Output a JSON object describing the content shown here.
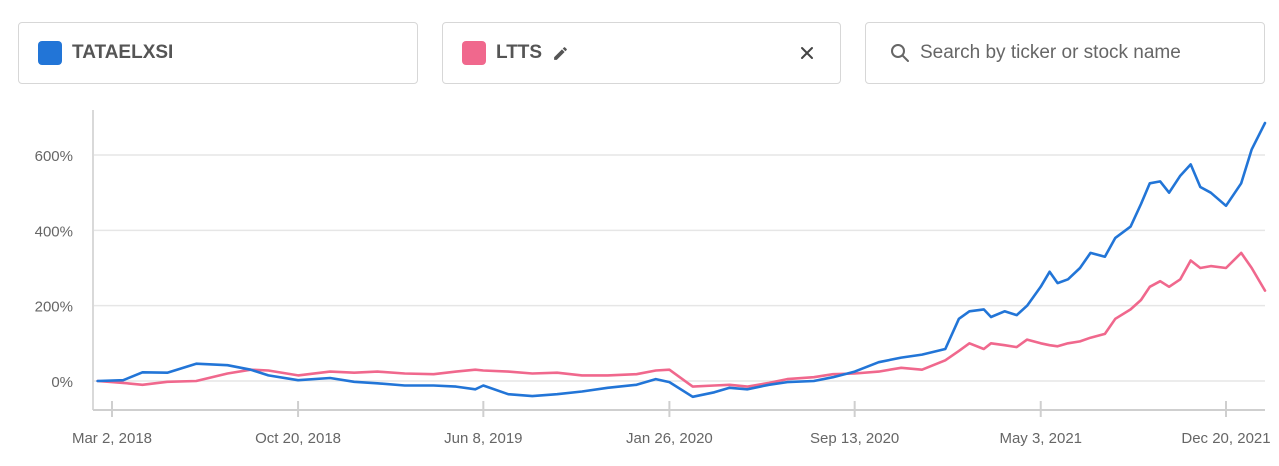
{
  "selectors": {
    "a": {
      "ticker": "TATAELXSI",
      "color": "#2275d7"
    },
    "b": {
      "ticker": "LTTS",
      "color": "#f0688d"
    },
    "search": {
      "placeholder": "Search by ticker or stock name"
    }
  },
  "chart_data": {
    "type": "line",
    "title": "",
    "xlabel": "",
    "ylabel": "",
    "grid": true,
    "y_ticks": [
      "0%",
      "200%",
      "400%",
      "600%"
    ],
    "y_tick_values": [
      0,
      200,
      400,
      600
    ],
    "x_ticks": [
      "Mar 2, 2018",
      "Oct 20, 2018",
      "Jun 8, 2019",
      "Jan 26, 2020",
      "Sep 13, 2020",
      "May 3, 2021",
      "Dec 20, 2021"
    ],
    "x_tick_values": [
      "2018-03-02",
      "2018-10-20",
      "2019-06-08",
      "2020-01-26",
      "2020-09-13",
      "2021-05-03",
      "2021-12-20"
    ],
    "ylim": [
      -75,
      725
    ],
    "series": [
      {
        "name": "TATAELXSI",
        "color": "#2275d7",
        "points": [
          [
            "2018-02-12",
            0
          ],
          [
            "2018-03-16",
            2
          ],
          [
            "2018-04-09",
            23
          ],
          [
            "2018-05-10",
            22
          ],
          [
            "2018-06-15",
            46
          ],
          [
            "2018-07-24",
            42
          ],
          [
            "2018-08-22",
            30
          ],
          [
            "2018-09-13",
            15
          ],
          [
            "2018-10-20",
            2
          ],
          [
            "2018-11-29",
            8
          ],
          [
            "2018-12-29",
            -2
          ],
          [
            "2019-01-27",
            -6
          ],
          [
            "2019-03-02",
            -12
          ],
          [
            "2019-04-07",
            -12
          ],
          [
            "2019-05-05",
            -15
          ],
          [
            "2019-05-29",
            -22
          ],
          [
            "2019-06-08",
            -12
          ],
          [
            "2019-07-09",
            -35
          ],
          [
            "2019-08-08",
            -40
          ],
          [
            "2019-09-08",
            -35
          ],
          [
            "2019-10-09",
            -28
          ],
          [
            "2019-11-10",
            -18
          ],
          [
            "2019-12-16",
            -10
          ],
          [
            "2020-01-09",
            5
          ],
          [
            "2020-01-26",
            -3
          ],
          [
            "2020-02-24",
            -42
          ],
          [
            "2020-03-22",
            -30
          ],
          [
            "2020-04-10",
            -18
          ],
          [
            "2020-05-02",
            -22
          ],
          [
            "2020-05-29",
            -10
          ],
          [
            "2020-06-21",
            -3
          ],
          [
            "2020-07-24",
            0
          ],
          [
            "2020-08-17",
            10
          ],
          [
            "2020-09-13",
            25
          ],
          [
            "2020-10-13",
            50
          ],
          [
            "2020-11-10",
            62
          ],
          [
            "2020-12-06",
            70
          ],
          [
            "2021-01-04",
            85
          ],
          [
            "2021-01-21",
            165
          ],
          [
            "2021-02-03",
            185
          ],
          [
            "2021-02-21",
            190
          ],
          [
            "2021-03-02",
            170
          ],
          [
            "2021-03-19",
            185
          ],
          [
            "2021-04-03",
            175
          ],
          [
            "2021-04-16",
            200
          ],
          [
            "2021-05-03",
            250
          ],
          [
            "2021-05-14",
            290
          ],
          [
            "2021-05-24",
            260
          ],
          [
            "2021-06-06",
            270
          ],
          [
            "2021-06-21",
            300
          ],
          [
            "2021-07-04",
            340
          ],
          [
            "2021-07-22",
            330
          ],
          [
            "2021-08-04",
            380
          ],
          [
            "2021-08-23",
            410
          ],
          [
            "2021-09-05",
            470
          ],
          [
            "2021-09-16",
            525
          ],
          [
            "2021-09-29",
            530
          ],
          [
            "2021-10-10",
            500
          ],
          [
            "2021-10-24",
            545
          ],
          [
            "2021-11-06",
            575
          ],
          [
            "2021-11-18",
            515
          ],
          [
            "2021-12-01",
            500
          ],
          [
            "2021-12-20",
            465
          ],
          [
            "2022-01-08",
            525
          ],
          [
            "2022-01-21",
            615
          ],
          [
            "2022-02-09",
            685
          ]
        ]
      },
      {
        "name": "LTTS",
        "color": "#f0688d",
        "points": [
          [
            "2018-02-12",
            0
          ],
          [
            "2018-03-16",
            -5
          ],
          [
            "2018-04-09",
            -10
          ],
          [
            "2018-05-10",
            -2
          ],
          [
            "2018-06-15",
            0
          ],
          [
            "2018-07-24",
            20
          ],
          [
            "2018-08-22",
            30
          ],
          [
            "2018-09-13",
            28
          ],
          [
            "2018-10-20",
            15
          ],
          [
            "2018-11-29",
            25
          ],
          [
            "2018-12-29",
            22
          ],
          [
            "2019-01-27",
            25
          ],
          [
            "2019-03-02",
            20
          ],
          [
            "2019-04-07",
            18
          ],
          [
            "2019-05-05",
            25
          ],
          [
            "2019-05-29",
            30
          ],
          [
            "2019-06-08",
            28
          ],
          [
            "2019-07-09",
            25
          ],
          [
            "2019-08-08",
            20
          ],
          [
            "2019-09-08",
            22
          ],
          [
            "2019-10-09",
            15
          ],
          [
            "2019-11-10",
            15
          ],
          [
            "2019-12-16",
            18
          ],
          [
            "2020-01-09",
            28
          ],
          [
            "2020-01-26",
            30
          ],
          [
            "2020-02-24",
            -15
          ],
          [
            "2020-03-22",
            -12
          ],
          [
            "2020-04-10",
            -10
          ],
          [
            "2020-05-02",
            -15
          ],
          [
            "2020-05-29",
            -5
          ],
          [
            "2020-06-21",
            5
          ],
          [
            "2020-07-24",
            10
          ],
          [
            "2020-08-17",
            18
          ],
          [
            "2020-09-13",
            20
          ],
          [
            "2020-10-13",
            25
          ],
          [
            "2020-11-10",
            35
          ],
          [
            "2020-12-06",
            30
          ],
          [
            "2021-01-04",
            55
          ],
          [
            "2021-01-21",
            80
          ],
          [
            "2021-02-03",
            100
          ],
          [
            "2021-02-21",
            85
          ],
          [
            "2021-03-02",
            100
          ],
          [
            "2021-03-19",
            95
          ],
          [
            "2021-04-03",
            90
          ],
          [
            "2021-04-16",
            110
          ],
          [
            "2021-05-03",
            100
          ],
          [
            "2021-05-14",
            95
          ],
          [
            "2021-05-24",
            92
          ],
          [
            "2021-06-06",
            100
          ],
          [
            "2021-06-21",
            105
          ],
          [
            "2021-07-04",
            115
          ],
          [
            "2021-07-22",
            125
          ],
          [
            "2021-08-04",
            165
          ],
          [
            "2021-08-23",
            190
          ],
          [
            "2021-09-05",
            215
          ],
          [
            "2021-09-16",
            250
          ],
          [
            "2021-09-29",
            265
          ],
          [
            "2021-10-10",
            250
          ],
          [
            "2021-10-24",
            270
          ],
          [
            "2021-11-06",
            320
          ],
          [
            "2021-11-18",
            300
          ],
          [
            "2021-12-01",
            305
          ],
          [
            "2021-12-20",
            300
          ],
          [
            "2022-01-08",
            340
          ],
          [
            "2022-01-21",
            300
          ],
          [
            "2022-02-09",
            240
          ]
        ]
      }
    ]
  }
}
